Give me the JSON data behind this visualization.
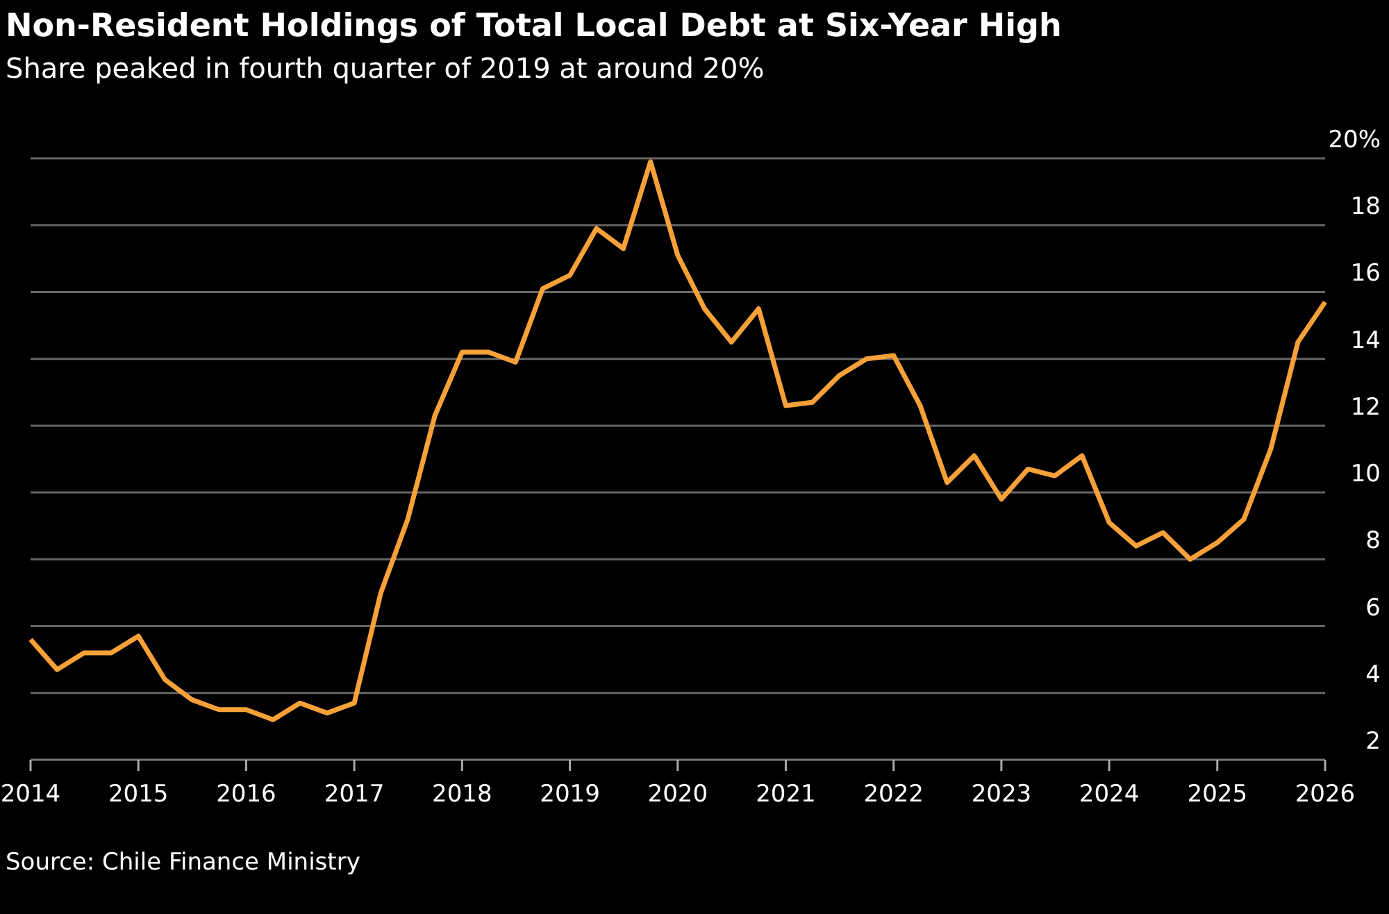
{
  "chart_data": {
    "type": "line",
    "title": "Non-Resident Holdings of Total Local Debt at Six-Year High",
    "subtitle": "Share peaked in fourth quarter of 2019 at around 20%",
    "annotations": [
      "Source: Chile Finance Ministry"
    ],
    "x": [
      "2014-01",
      "2014-04",
      "2014-07",
      "2014-10",
      "2015-01",
      "2015-04",
      "2015-07",
      "2015-10",
      "2016-01",
      "2016-04",
      "2016-07",
      "2016-10",
      "2017-01",
      "2017-04",
      "2017-07",
      "2017-10",
      "2018-01",
      "2018-04",
      "2018-07",
      "2018-10",
      "2019-01",
      "2019-04",
      "2019-07",
      "2019-10",
      "2020-01",
      "2020-04",
      "2020-07",
      "2020-10",
      "2021-01",
      "2021-04",
      "2021-07",
      "2021-10",
      "2022-01",
      "2022-04",
      "2022-07",
      "2022-10",
      "2023-01",
      "2023-04",
      "2023-07",
      "2023-10",
      "2024-01",
      "2024-04",
      "2024-07",
      "2024-10",
      "2025-01",
      "2025-04",
      "2025-07",
      "2025-10",
      "2026-01"
    ],
    "series": [
      {
        "color": "#f7a138",
        "values": [
          5.6,
          4.7,
          5.2,
          5.2,
          5.7,
          4.4,
          3.8,
          3.5,
          3.5,
          3.2,
          3.7,
          3.4,
          3.7,
          7.0,
          9.2,
          12.3,
          14.2,
          14.2,
          13.9,
          16.1,
          16.5,
          17.9,
          17.3,
          19.9,
          17.1,
          15.5,
          14.5,
          15.5,
          12.6,
          12.7,
          13.5,
          14.0,
          14.1,
          12.6,
          10.3,
          11.1,
          9.8,
          10.7,
          10.5,
          11.1,
          9.1,
          8.4,
          8.8,
          8.0,
          8.5,
          9.2,
          11.3,
          14.5,
          15.7
        ]
      }
    ],
    "xlim": [
      "2014-01",
      "2026-01"
    ],
    "xticks": [
      "2014",
      "2015",
      "2016",
      "2017",
      "2018",
      "2019",
      "2020",
      "2021",
      "2022",
      "2023",
      "2024",
      "2025",
      "2026"
    ],
    "ylim": [
      2,
      20
    ],
    "yticks": [
      2,
      4,
      6,
      8,
      10,
      12,
      14,
      16,
      18,
      {
        "value": 20,
        "label": "20%"
      }
    ],
    "grid": "y",
    "line_style": "solid"
  }
}
